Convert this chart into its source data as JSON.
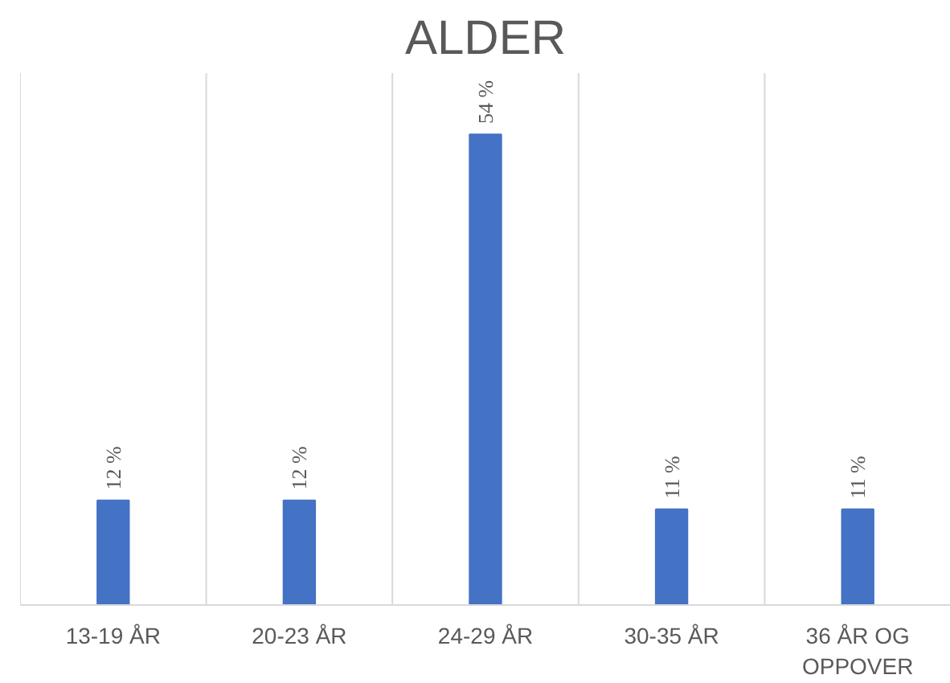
{
  "chart_data": {
    "type": "bar",
    "title": "ALDER",
    "categories": [
      "13-19 ÅR",
      "20-23 ÅR",
      "24-29 ÅR",
      "30-35 ÅR",
      "36 ÅR OG OPPOVER"
    ],
    "values": [
      12,
      12,
      54,
      11,
      11
    ],
    "value_labels": [
      "12 %",
      "12 %",
      "54 %",
      "11 %",
      "11 %"
    ],
    "color": "#4472c4",
    "grid": "x"
  }
}
